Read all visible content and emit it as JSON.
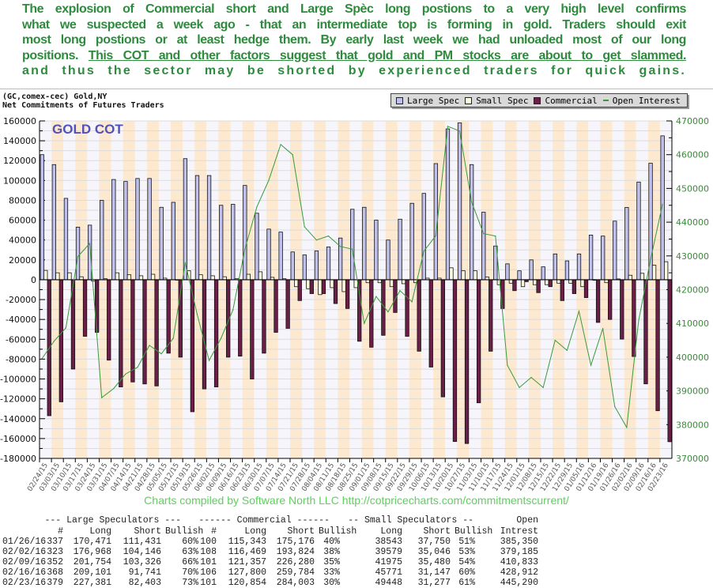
{
  "commentary": {
    "lines": [
      "The explosion of Commercial short and Large Spèc long postions to a very high level confirms",
      "what we suspected a week ago - that an intermediate top is forming in gold. Traders should exit",
      "most long postions or at least hedge them. By early last week we had unloaded most of our long"
    ],
    "line4_plain": "positions. ",
    "line4_underlined": "This COT and other factors suggest that gold and PM stocks are about to get slammed.",
    "line5": "and thus the sector may be shorted by experienced traders for quick gains.",
    "color": "#2e8b3e"
  },
  "chart_header": {
    "symbol": "(GC,comex-cec) Gold,NY",
    "subtitle": "Net Commitments of Futures Traders",
    "overlay_title": "GOLD COT"
  },
  "legend": {
    "items": [
      {
        "label": "Large Spec",
        "color": "#c0c0ec"
      },
      {
        "label": "Small Spec",
        "color": "#fffde0"
      },
      {
        "label": "Commercial",
        "color": "#6b1e48"
      },
      {
        "label": "Open Interest",
        "color": "#3a9a3a"
      }
    ]
  },
  "credit": "Charts compiled by Software North LLC  http://cotpricecharts.com/commitmentscurrent/",
  "chart_data": {
    "type": "bar",
    "grid": true,
    "legend_position": "top-right",
    "ylim_left": [
      -180000,
      160000
    ],
    "ylim_right": [
      370000,
      470000
    ],
    "yticks_left": [
      "160000",
      "140000",
      "120000",
      "100000",
      "80000",
      "60000",
      "40000",
      "20000",
      "0",
      "-20000",
      "-40000",
      "-60000",
      "-80000",
      "-100000",
      "-120000",
      "-140000",
      "-160000",
      "-180000"
    ],
    "yticks_right": [
      "470000",
      "460000",
      "450000",
      "440000",
      "430000",
      "420000",
      "410000",
      "400000",
      "390000",
      "380000",
      "370000"
    ],
    "categories": [
      "02/24/15",
      "03/03/15",
      "03/10/15",
      "03/17/15",
      "03/24/15",
      "03/31/15",
      "04/07/15",
      "04/14/15",
      "04/21/15",
      "04/28/15",
      "05/05/15",
      "05/12/15",
      "05/19/15",
      "05/26/15",
      "06/02/15",
      "06/09/15",
      "06/16/15",
      "06/23/15",
      "06/30/15",
      "07/07/15",
      "07/14/15",
      "07/21/15",
      "07/28/15",
      "08/04/15",
      "08/11/15",
      "08/18/15",
      "08/25/15",
      "09/01/15",
      "09/08/15",
      "09/15/15",
      "09/22/15",
      "09/29/15",
      "10/06/15",
      "10/13/15",
      "10/20/15",
      "10/27/15",
      "11/03/15",
      "11/10/15",
      "11/17/15",
      "11/24/15",
      "12/01/15",
      "12/08/15",
      "12/15/15",
      "12/22/15",
      "12/29/15",
      "01/05/16",
      "01/12/16",
      "01/19/16",
      "01/26/16",
      "02/02/16",
      "02/09/16",
      "02/16/16",
      "02/23/16"
    ],
    "series": [
      {
        "name": "Large Spec",
        "type": "bar",
        "axis": "left",
        "values": [
          126000,
          116000,
          82000,
          53000,
          55000,
          80000,
          101000,
          99000,
          102000,
          102000,
          73000,
          78000,
          122000,
          105000,
          105000,
          75000,
          76000,
          95000,
          67000,
          51000,
          48000,
          28000,
          25000,
          29000,
          33000,
          42000,
          71000,
          73000,
          60000,
          40000,
          61000,
          77000,
          87000,
          117000,
          152000,
          158000,
          116000,
          68000,
          34000,
          16000,
          9000,
          20000,
          13000,
          26000,
          19000,
          26000,
          45000,
          44000,
          59040,
          72822,
          98428,
          117360,
          144978
        ]
      },
      {
        "name": "Small Spec",
        "type": "bar",
        "axis": "left",
        "values": [
          9400,
          7000,
          7000,
          3000,
          -1500,
          1000,
          7000,
          5000,
          4000,
          5500,
          1600,
          0,
          9000,
          5000,
          4000,
          3000,
          1000,
          5500,
          8000,
          2400,
          1000,
          -7000,
          -9000,
          -15000,
          -8000,
          -12000,
          -8000,
          -3000,
          -3000,
          -7000,
          -4000,
          -3000,
          1600,
          1600,
          12000,
          9000,
          9000,
          2700,
          -5000,
          -3500,
          -7000,
          -5000,
          -5000,
          -3500,
          -3500,
          -7000,
          -500,
          -3000,
          793,
          4533,
          6495,
          14624,
          18171
        ]
      },
      {
        "name": "Commercial",
        "type": "bar",
        "axis": "left",
        "values": [
          -137000,
          -123000,
          -90000,
          -57000,
          -53000,
          -81000,
          -108000,
          -103000,
          -105000,
          -107000,
          -74000,
          -78000,
          -133000,
          -110000,
          -108000,
          -78000,
          -77000,
          -100000,
          -74000,
          -53000,
          -49000,
          -21000,
          -14000,
          -14000,
          -24000,
          -29000,
          -62000,
          -68000,
          -56000,
          -33000,
          -57000,
          -72000,
          -88000,
          -118000,
          -163000,
          -165000,
          -124000,
          -72000,
          -29000,
          -11000,
          -2000,
          -13000,
          -7000,
          -21000,
          -14000,
          -18000,
          -43000,
          -40000,
          -59833,
          -77355,
          -104923,
          -131984,
          -163149
        ]
      },
      {
        "name": "Open Interest",
        "type": "line",
        "axis": "right",
        "values": [
          399600,
          404700,
          408700,
          429800,
          433700,
          388000,
          390700,
          395000,
          397000,
          403500,
          401000,
          405600,
          428000,
          412700,
          399000,
          405600,
          414000,
          432000,
          444500,
          452400,
          463000,
          460000,
          438600,
          434700,
          435900,
          432800,
          432000,
          410000,
          418000,
          413400,
          419700,
          416400,
          431400,
          436000,
          468400,
          467000,
          446000,
          436600,
          435900,
          397600,
          391000,
          394000,
          391000,
          405000,
          402000,
          413600,
          397600,
          408500,
          385350,
          379185,
          410833,
          428912,
          445290
        ]
      }
    ]
  },
  "table": {
    "group_headers": [
      "--- Large Speculators ---",
      "------ Commercial ------",
      "-- Small Speculators --",
      "Open"
    ],
    "column_headers": [
      "#",
      "Long",
      "Short",
      "Bullish",
      "#",
      "Long",
      "Short",
      "Bullish",
      "Long",
      "Short",
      "Bullish",
      "Intrest"
    ],
    "rows": [
      [
        "01/26/16",
        "337",
        "170,471",
        "111,431",
        "60%",
        "100",
        "115,343",
        "175,176",
        "40%",
        "38543",
        "37,750",
        "51%",
        "385,350"
      ],
      [
        "02/02/16",
        "323",
        "176,968",
        "104,146",
        "63%",
        "108",
        "116,469",
        "193,824",
        "38%",
        "39579",
        "35,046",
        "53%",
        "379,185"
      ],
      [
        "02/09/16",
        "352",
        "201,754",
        "103,326",
        "66%",
        "101",
        "121,357",
        "226,280",
        "35%",
        "41975",
        "35,480",
        "54%",
        "410,833"
      ],
      [
        "02/16/16",
        "368",
        "209,101",
        "91,741",
        "70%",
        "106",
        "127,800",
        "259,784",
        "33%",
        "45771",
        "31,147",
        "60%",
        "428,912"
      ],
      [
        "02/23/16",
        "379",
        "227,381",
        "82,403",
        "73%",
        "101",
        "120,854",
        "284,003",
        "30%",
        "49448",
        "31,277",
        "61%",
        "445,290"
      ]
    ]
  }
}
